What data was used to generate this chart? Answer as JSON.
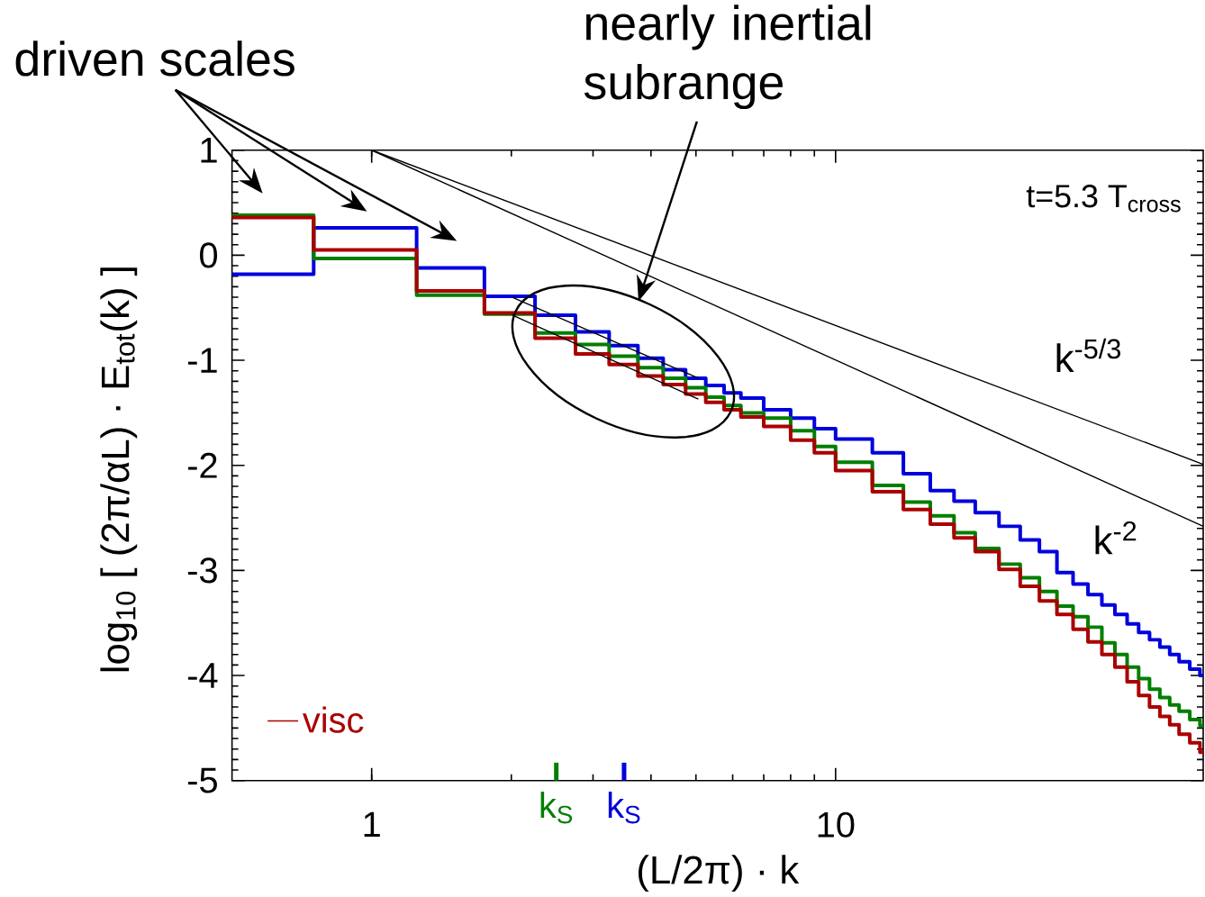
{
  "chart_data": {
    "type": "step",
    "xlabel": "(L/2π) · k",
    "ylabel": "log$_{10}$ [ (2π/αL) · E$_{tot}$(k) ]",
    "annotations": [
      "driven scales",
      "nearly inertial subrange",
      "t=5.3 T$_{cross}$",
      "k$^{-5/3}$",
      "k$^{-2}$"
    ],
    "log": "x",
    "xlim": [
      0.5,
      62
    ],
    "ylim": [
      -5,
      1
    ],
    "xticks": [
      1,
      10
    ],
    "yticks": [
      -5,
      -4,
      -3,
      -2,
      -1,
      0,
      1
    ],
    "legend": "bottom left",
    "ref_lines": [
      {
        "axis": "x",
        "value": 2.5,
        "label": "k$_{S}$",
        "color": "#007f00"
      },
      {
        "axis": "x",
        "value": 3.5,
        "label": "k$_{S}$",
        "color": "#0000dd"
      }
    ],
    "series": [
      {
        "color": "#0000dd",
        "x": [
          0.5,
          0.75,
          1.25,
          1.75,
          2.25,
          2.75,
          3.25,
          3.75,
          4.25,
          4.75,
          5.25,
          5.75,
          6.25,
          7,
          8,
          9,
          10,
          12,
          14,
          16,
          18,
          20,
          22.5,
          25,
          27.5,
          30,
          32.5,
          35,
          37.5,
          40,
          42.5,
          45,
          47.5,
          50,
          52.5,
          55,
          58,
          61
        ],
        "values": [
          -0.18,
          0.26,
          -0.12,
          -0.39,
          -0.57,
          -0.73,
          -0.86,
          -0.98,
          -1.09,
          -1.17,
          -1.24,
          -1.31,
          -1.36,
          -1.47,
          -1.55,
          -1.65,
          -1.75,
          -1.88,
          -2.08,
          -2.24,
          -2.34,
          -2.45,
          -2.58,
          -2.71,
          -2.82,
          -3.02,
          -3.13,
          -3.23,
          -3.33,
          -3.42,
          -3.51,
          -3.59,
          -3.66,
          -3.73,
          -3.8,
          -3.87,
          -3.94,
          -4.0
        ]
      },
      {
        "color": "#007f00",
        "x": [
          0.5,
          0.75,
          1.25,
          1.75,
          2.25,
          2.75,
          3.25,
          3.75,
          4.25,
          4.75,
          5.25,
          5.75,
          6.25,
          7,
          8,
          9,
          10,
          12,
          14,
          16,
          18,
          20,
          22.5,
          25,
          27.5,
          30,
          32.5,
          35,
          37.5,
          40,
          42.5,
          45,
          47.5,
          50,
          52.5,
          55,
          58,
          61
        ],
        "values": [
          0.38,
          -0.03,
          -0.38,
          -0.56,
          -0.74,
          -0.85,
          -0.96,
          -1.07,
          -1.17,
          -1.26,
          -1.35,
          -1.43,
          -1.5,
          -1.55,
          -1.67,
          -1.82,
          -1.97,
          -2.19,
          -2.35,
          -2.48,
          -2.64,
          -2.79,
          -2.94,
          -3.07,
          -3.2,
          -3.34,
          -3.44,
          -3.54,
          -3.69,
          -3.8,
          -3.92,
          -4.03,
          -4.13,
          -4.21,
          -4.28,
          -4.34,
          -4.42,
          -4.48
        ]
      },
      {
        "name": "visc",
        "color": "#aa0000",
        "x": [
          0.5,
          0.75,
          1.25,
          1.75,
          2.25,
          2.75,
          3.25,
          3.75,
          4.25,
          4.75,
          5.25,
          5.75,
          6.25,
          7,
          8,
          9,
          10,
          12,
          14,
          16,
          18,
          20,
          22.5,
          25,
          27.5,
          30,
          32.5,
          35,
          37.5,
          40,
          42.5,
          45,
          47.5,
          50,
          52.5,
          55,
          58,
          61
        ],
        "values": [
          0.36,
          0.05,
          -0.34,
          -0.55,
          -0.79,
          -0.94,
          -1.04,
          -1.15,
          -1.23,
          -1.32,
          -1.4,
          -1.47,
          -1.54,
          -1.63,
          -1.76,
          -1.88,
          -2.05,
          -2.25,
          -2.42,
          -2.56,
          -2.69,
          -2.82,
          -2.99,
          -3.15,
          -3.29,
          -3.42,
          -3.56,
          -3.68,
          -3.8,
          -3.92,
          -4.06,
          -4.19,
          -4.3,
          -4.39,
          -4.47,
          -4.56,
          -4.64,
          -4.73
        ]
      },
      {
        "type": "line",
        "color": "#000000",
        "x": [
          1,
          62
        ],
        "values": [
          1,
          -1.99
        ]
      },
      {
        "type": "line",
        "color": "#000000",
        "x": [
          1,
          62
        ],
        "values": [
          1,
          -2.58
        ]
      },
      {
        "type": "line",
        "color": "#000000",
        "x": [
          2.01,
          5.06
        ],
        "values": [
          -0.4,
          -1.17
        ]
      },
      {
        "type": "line",
        "color": "#000000",
        "x": [
          2.01,
          5.06
        ],
        "values": [
          -0.57,
          -1.37
        ]
      }
    ]
  }
}
